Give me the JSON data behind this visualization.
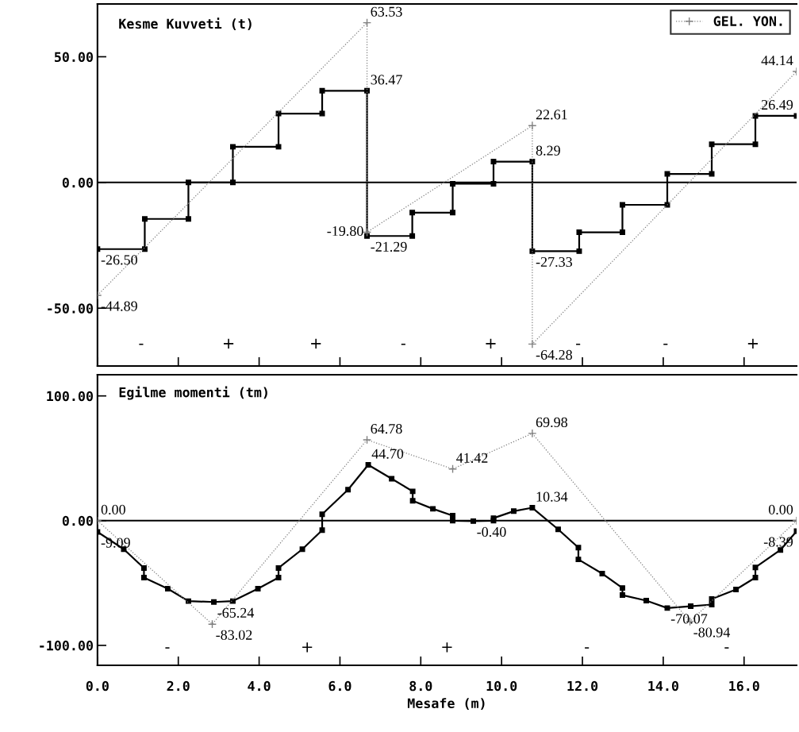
{
  "chart_data": [
    {
      "type": "line",
      "title": "Kesme Kuvveti (t)",
      "xlim": [
        0,
        17.3
      ],
      "ylim": [
        -73,
        71
      ],
      "xticks": [
        {
          "value": 0,
          "label": null
        },
        {
          "value": 2,
          "label": null
        },
        {
          "value": 4,
          "label": null
        },
        {
          "value": 6,
          "label": null
        },
        {
          "value": 8,
          "label": null
        },
        {
          "value": 10,
          "label": null
        },
        {
          "value": 12,
          "label": null
        },
        {
          "value": 14,
          "label": null
        },
        {
          "value": 16,
          "label": null
        }
      ],
      "yticks": [
        {
          "value": -50,
          "label": "-50.00"
        },
        {
          "value": 0,
          "label": "0.00"
        },
        {
          "value": 50,
          "label": "50.00"
        }
      ],
      "tick_labels": "y",
      "grid": false,
      "legend": "top right",
      "ref_lines": [
        {
          "axis": "y",
          "value": 0,
          "color": "#000000",
          "line_style": "solid"
        }
      ],
      "series": [
        {
          "color": "#000000",
          "marker": "square",
          "line_style": "solid",
          "x": [
            0,
            1.17,
            1.17,
            2.25,
            2.25,
            3.35,
            3.35,
            4.48,
            4.48,
            5.56,
            5.56,
            6.67,
            6.67,
            7.79,
            7.79,
            8.79,
            8.79,
            9.8,
            9.8,
            10.76,
            10.76,
            11.92,
            11.92,
            12.99,
            12.99,
            14.1,
            14.1,
            15.2,
            15.2,
            16.28,
            16.28,
            17.3
          ],
          "values": [
            -26.5,
            -26.5,
            -14.5,
            -14.5,
            0,
            0,
            14.2,
            14.2,
            27.4,
            27.4,
            36.47,
            36.47,
            -21.29,
            -21.29,
            -12,
            -12,
            -0.5,
            -0.5,
            8.29,
            8.29,
            -27.33,
            -27.33,
            -19.8,
            -19.8,
            -8.9,
            -8.9,
            3.4,
            3.4,
            15.2,
            15.2,
            26.49,
            26.49
          ]
        },
        {
          "name": "GEL. YON.",
          "color": "#808080",
          "marker": "cross",
          "line_style": "dotted",
          "x": [
            0,
            6.67,
            6.67,
            10.76,
            10.76,
            17.3
          ],
          "values": [
            -44.89,
            63.53,
            -19.8,
            22.61,
            -64.28,
            44.14
          ]
        }
      ],
      "annotations": [
        {
          "text": "63.53",
          "x": 6.67,
          "y": 63.53
        },
        {
          "text": "36.47",
          "x": 6.67,
          "y": 36.47
        },
        {
          "text": "-19.80",
          "x": 6.67,
          "y": -19.8
        },
        {
          "text": "-21.29",
          "x": 6.67,
          "y": -21.29
        },
        {
          "text": "-26.50",
          "x": 0,
          "y": -26.5
        },
        {
          "text": "-44.89",
          "x": 0,
          "y": -44.89
        },
        {
          "text": "22.61",
          "x": 10.76,
          "y": 22.61
        },
        {
          "text": "8.29",
          "x": 10.76,
          "y": 8.29
        },
        {
          "text": "-27.33",
          "x": 10.76,
          "y": -27.33
        },
        {
          "text": "-64.28",
          "x": 10.76,
          "y": -64.28
        },
        {
          "text": "44.14",
          "x": 17.3,
          "y": 44.14
        },
        {
          "text": "26.49",
          "x": 17.3,
          "y": 26.49
        },
        "-",
        "+",
        "+",
        "-",
        "+",
        "-",
        "-",
        "+"
      ]
    },
    {
      "type": "line",
      "title": "Egilme momenti (tm)",
      "xlabel": "Mesafe (m)",
      "xlim": [
        0,
        17.3
      ],
      "ylim": [
        -116,
        117
      ],
      "xticks": [
        {
          "value": 0,
          "label": "0.0"
        },
        {
          "value": 2,
          "label": "2.0"
        },
        {
          "value": 4,
          "label": "4.0"
        },
        {
          "value": 6,
          "label": "6.0"
        },
        {
          "value": 8,
          "label": "8.0"
        },
        {
          "value": 10,
          "label": "10.0"
        },
        {
          "value": 12,
          "label": "12.0"
        },
        {
          "value": 14,
          "label": "14.0"
        },
        {
          "value": 16,
          "label": "16.0"
        }
      ],
      "yticks": [
        {
          "value": -100,
          "label": "-100.00"
        },
        {
          "value": 0,
          "label": "0.00"
        },
        {
          "value": 100,
          "label": "100.00"
        }
      ],
      "grid": false,
      "legend": false,
      "ref_lines": [
        {
          "axis": "y",
          "value": 0,
          "color": "#000000",
          "line_style": "solid"
        }
      ],
      "series": [
        {
          "color": "#000000",
          "marker": "square",
          "line_style": "solid",
          "x": [
            0,
            0.65,
            1.15,
            1.15,
            1.74,
            2.25,
            2.88,
            3.35,
            3.97,
            4.48,
            4.48,
            5.07,
            5.56,
            5.56,
            6.2,
            6.7,
            7.28,
            7.8,
            7.8,
            8.3,
            8.79,
            8.79,
            9.3,
            9.8,
            9.8,
            10.3,
            10.76,
            11.4,
            11.9,
            11.9,
            12.49,
            12.99,
            12.99,
            13.58,
            14.1,
            14.68,
            15.2,
            15.2,
            15.8,
            16.28,
            16.28,
            16.9,
            17.3
          ],
          "values": [
            -9.09,
            -22.9,
            -38,
            -45.7,
            -54.6,
            -64.5,
            -65.24,
            -64.5,
            -54.6,
            -45.7,
            -38,
            -22.9,
            -7.6,
            5.1,
            24.8,
            44.7,
            33.6,
            23.5,
            15.9,
            9.5,
            4,
            0,
            -0.4,
            0,
            2,
            7.6,
            10.34,
            -7,
            -21.6,
            -31.1,
            -42.5,
            -54,
            -59.7,
            -64.1,
            -70.07,
            -68.6,
            -67.3,
            -62.9,
            -55.2,
            -45.7,
            -37.5,
            -23.5,
            -8.39
          ]
        },
        {
          "color": "#808080",
          "marker": "cross",
          "line_style": "dotted",
          "x": [
            0,
            2.84,
            6.67,
            8.79,
            10.76,
            14.66,
            17.3
          ],
          "values": [
            0,
            -83.02,
            64.78,
            41.42,
            69.98,
            -80.94,
            0
          ]
        }
      ],
      "annotations": [
        {
          "text": "0.00",
          "x": 0,
          "y": 0
        },
        {
          "text": "-9.09",
          "x": 0,
          "y": -9.09
        },
        {
          "text": "-65.24",
          "x": 2.88,
          "y": -65.24
        },
        {
          "text": "-83.02",
          "x": 2.84,
          "y": -83.02
        },
        {
          "text": "64.78",
          "x": 6.67,
          "y": 64.78
        },
        {
          "text": "44.70",
          "x": 6.7,
          "y": 44.7
        },
        {
          "text": "41.42",
          "x": 8.79,
          "y": 41.42
        },
        {
          "text": "-0.40",
          "x": 9.3,
          "y": -0.4
        },
        {
          "text": "69.98",
          "x": 10.76,
          "y": 69.98
        },
        {
          "text": "10.34",
          "x": 10.76,
          "y": 10.34
        },
        {
          "text": "-70.07",
          "x": 14.1,
          "y": -70.07
        },
        {
          "text": "-80.94",
          "x": 14.66,
          "y": -80.94
        },
        {
          "text": "0.00",
          "x": 17.3,
          "y": 0
        },
        {
          "text": "-8.39",
          "x": 17.3,
          "y": -8.39
        },
        "-",
        "+",
        "+",
        "-",
        "-"
      ]
    }
  ]
}
